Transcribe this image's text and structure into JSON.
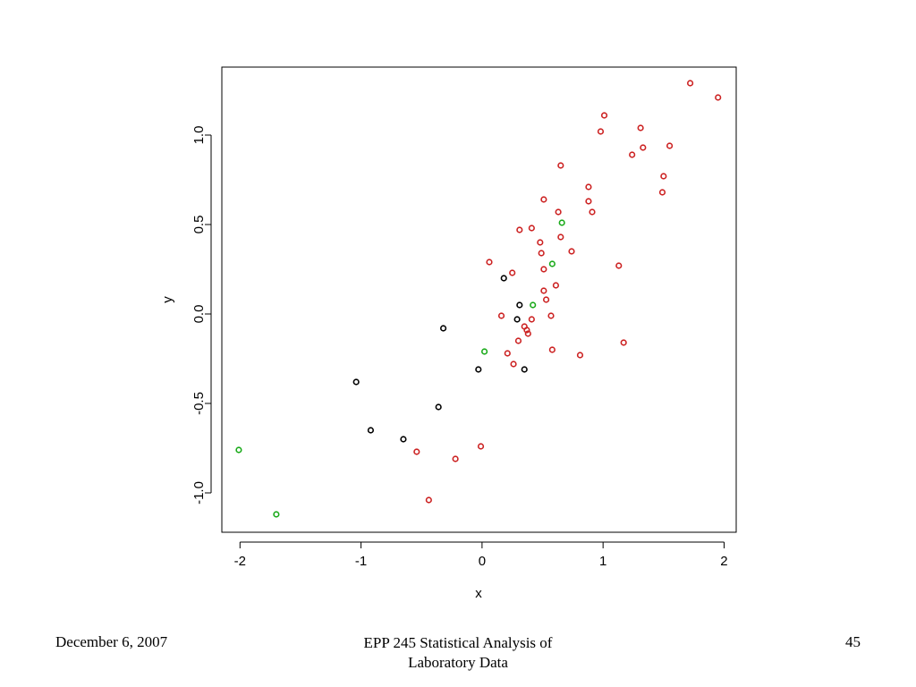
{
  "chart_data": {
    "type": "scatter",
    "title": "",
    "xlabel": "x",
    "ylabel": "y",
    "xlim": [
      -2.15,
      2.1
    ],
    "ylim": [
      -1.22,
      1.38
    ],
    "xticks": [
      -2,
      -1,
      0,
      1,
      2
    ],
    "xtick_labels": [
      "-2",
      "-1",
      "0",
      "1",
      "2"
    ],
    "yticks": [
      -1.0,
      -0.5,
      0.0,
      0.5,
      1.0
    ],
    "ytick_labels": [
      "-1.0",
      "-0.5",
      "0.0",
      "0.5",
      "1.0"
    ],
    "grid": false,
    "legend": "none",
    "series": [
      {
        "color": "#cc2222",
        "points": [
          [
            1.72,
            1.29
          ],
          [
            1.95,
            1.21
          ],
          [
            1.01,
            1.11
          ],
          [
            0.98,
            1.02
          ],
          [
            1.31,
            1.04
          ],
          [
            1.55,
            0.94
          ],
          [
            1.33,
            0.93
          ],
          [
            1.24,
            0.89
          ],
          [
            0.65,
            0.83
          ],
          [
            1.5,
            0.77
          ],
          [
            0.88,
            0.71
          ],
          [
            1.49,
            0.68
          ],
          [
            0.51,
            0.64
          ],
          [
            0.88,
            0.63
          ],
          [
            0.63,
            0.57
          ],
          [
            0.91,
            0.57
          ],
          [
            0.41,
            0.48
          ],
          [
            0.31,
            0.47
          ],
          [
            0.65,
            0.43
          ],
          [
            0.48,
            0.4
          ],
          [
            0.74,
            0.35
          ],
          [
            0.49,
            0.34
          ],
          [
            0.06,
            0.29
          ],
          [
            1.13,
            0.27
          ],
          [
            0.51,
            0.25
          ],
          [
            0.25,
            0.23
          ],
          [
            0.61,
            0.16
          ],
          [
            0.51,
            0.13
          ],
          [
            0.53,
            0.08
          ],
          [
            0.16,
            -0.01
          ],
          [
            0.57,
            -0.01
          ],
          [
            0.41,
            -0.03
          ],
          [
            0.35,
            -0.07
          ],
          [
            0.37,
            -0.09
          ],
          [
            0.38,
            -0.11
          ],
          [
            0.3,
            -0.15
          ],
          [
            1.17,
            -0.16
          ],
          [
            0.58,
            -0.2
          ],
          [
            0.21,
            -0.22
          ],
          [
            0.81,
            -0.23
          ],
          [
            0.26,
            -0.28
          ],
          [
            -0.01,
            -0.74
          ],
          [
            -0.54,
            -0.77
          ],
          [
            -0.22,
            -0.81
          ],
          [
            -0.44,
            -1.04
          ]
        ]
      },
      {
        "color": "#1aaa1a",
        "points": [
          [
            0.66,
            0.51
          ],
          [
            0.58,
            0.28
          ],
          [
            0.42,
            0.05
          ],
          [
            0.02,
            -0.21
          ],
          [
            -2.01,
            -0.76
          ],
          [
            -1.7,
            -1.12
          ]
        ]
      },
      {
        "color": "#000000",
        "points": [
          [
            0.18,
            0.2
          ],
          [
            0.31,
            0.05
          ],
          [
            0.29,
            -0.03
          ],
          [
            -0.32,
            -0.08
          ],
          [
            -0.03,
            -0.31
          ],
          [
            0.35,
            -0.31
          ],
          [
            -1.04,
            -0.38
          ],
          [
            -0.36,
            -0.52
          ],
          [
            -0.92,
            -0.65
          ],
          [
            -0.65,
            -0.7
          ]
        ]
      }
    ]
  },
  "footer": {
    "date": "December 6, 2007",
    "title_line1": "EPP 245 Statistical Analysis of",
    "title_line2": "Laboratory Data",
    "page": "45"
  }
}
